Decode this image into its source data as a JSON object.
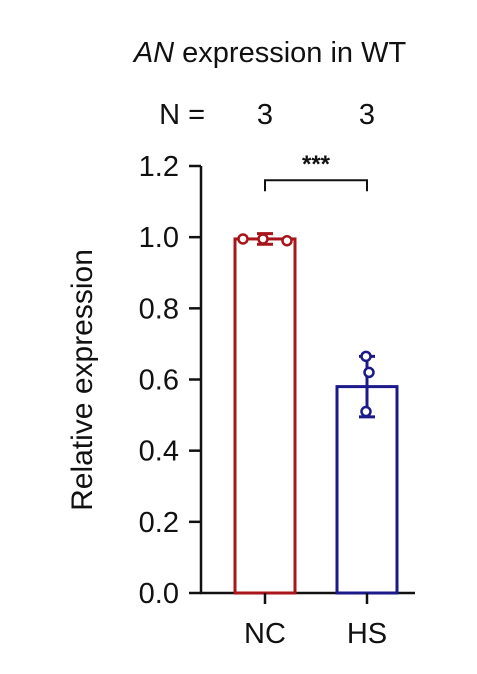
{
  "chart_data": {
    "type": "bar",
    "title": "AN expression in WT",
    "title_italic_part": "AN",
    "title_rest": " expression in WT",
    "n_label": "N =",
    "n_values": [
      "3",
      "3"
    ],
    "categories": [
      "NC",
      "HS"
    ],
    "values": [
      0.995,
      0.58
    ],
    "error": [
      0.015,
      0.085
    ],
    "points": [
      [
        0.995,
        0.995,
        0.99
      ],
      [
        0.665,
        0.62,
        0.51
      ]
    ],
    "colors": [
      "#a8151b",
      "#1c1a8a"
    ],
    "ylabel": "Relative expression",
    "xlabel": "",
    "ylim": [
      0,
      1.2
    ],
    "yticks": [
      "0.0",
      "0.2",
      "0.4",
      "0.6",
      "0.8",
      "1.0",
      "1.2"
    ],
    "significance": "***",
    "grid": false
  }
}
